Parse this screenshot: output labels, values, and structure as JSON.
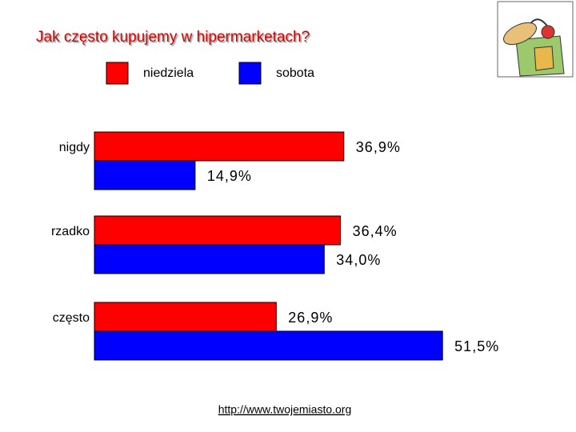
{
  "chart_data": {
    "type": "bar",
    "title": "Jak często kupujemy w hipermarketach?",
    "categories": [
      "nigdy",
      "rzadko",
      "często"
    ],
    "series": [
      {
        "name": "niedziela",
        "color": "#ff0000",
        "values": [
          36.9,
          36.4,
          26.9
        ],
        "value_labels": [
          "36,9%",
          "36,4%",
          "26,9%"
        ]
      },
      {
        "name": "sobota",
        "color": "#0000ff",
        "values": [
          14.9,
          34.0,
          51.5
        ],
        "value_labels": [
          "14,9%",
          "34,0%",
          "51,5%"
        ]
      }
    ],
    "xlim": [
      0,
      60
    ],
    "source": "http://www.twojemiasto.org"
  }
}
